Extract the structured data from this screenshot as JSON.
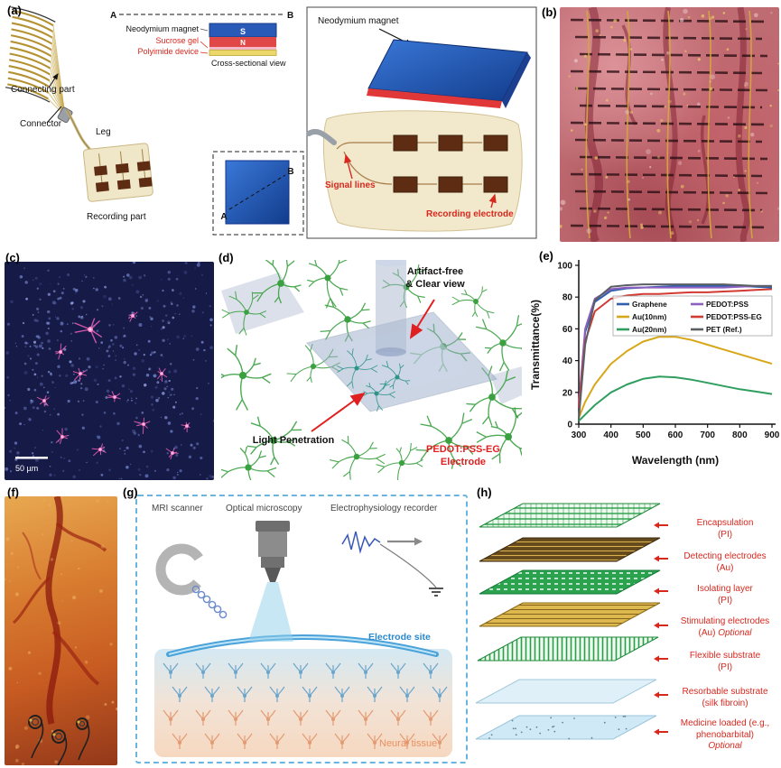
{
  "panel_a": {
    "label": "(a)",
    "inset": {
      "a_marker": "A",
      "b_marker": "B",
      "neodymium_magnet": "Neodymium magnet",
      "sucrose_gel": "Sucrose gel",
      "polyimide_device": "Polyimide device",
      "cross_sectional_view": "Cross-sectional view",
      "s_pole": "S",
      "n_pole": "N"
    },
    "left": {
      "connecting_part": "Connecting part",
      "connector": "Connector",
      "leg": "Leg",
      "recording_part": "Recording part",
      "a_marker": "A",
      "b_marker": "B"
    },
    "right": {
      "neodymium_magnet": "Neodymium magnet",
      "signal_lines": "Signal lines",
      "recording_electrode": "Recording electrode"
    }
  },
  "panel_b": {
    "label": "(b)"
  },
  "panel_c": {
    "label": "(c)",
    "scale_bar": "50 µm"
  },
  "panel_d": {
    "label": "(d)",
    "artifact_line1": "Artifact-free",
    "artifact_line2": "& Clear view",
    "light_penetration": "Light Penetration",
    "electrode_line1": "PEDOT:PSS-EG",
    "electrode_line2": "Electrode"
  },
  "panel_e": {
    "label": "(e)",
    "chart_data": {
      "type": "line",
      "xlabel": "Wavelength (nm)",
      "ylabel": "Transmittance(%)",
      "xlim": [
        300,
        900
      ],
      "ylim": [
        0,
        100
      ],
      "xticks": [
        300,
        400,
        500,
        600,
        700,
        800,
        900
      ],
      "yticks": [
        0,
        20,
        40,
        60,
        80,
        100
      ],
      "grid": false,
      "legend_position": "upper right inside",
      "x": [
        300,
        320,
        350,
        400,
        450,
        500,
        550,
        600,
        650,
        700,
        750,
        800,
        850,
        900
      ],
      "series": [
        {
          "name": "Graphene",
          "color": "#2f5fae",
          "values": [
            10,
            58,
            77,
            84,
            85.5,
            86,
            86.5,
            87,
            87,
            87,
            87,
            87,
            86.5,
            86
          ]
        },
        {
          "name": "Au(10nm)",
          "color": "#d8a718",
          "values": [
            4,
            14,
            25,
            38,
            46,
            52,
            55,
            55,
            53,
            50,
            47,
            44,
            41,
            38
          ]
        },
        {
          "name": "Au(20nm)",
          "color": "#2f9e5f",
          "values": [
            2,
            6,
            12,
            20,
            25,
            28.5,
            30,
            29.5,
            28,
            26,
            24,
            22,
            20.5,
            19
          ]
        },
        {
          "name": "PEDOT:PSS",
          "color": "#8f5fc0",
          "values": [
            12,
            60,
            79,
            85,
            86,
            86,
            86,
            86,
            86,
            86,
            86,
            86.5,
            87,
            87
          ]
        },
        {
          "name": "PEDOT:PSS-EG",
          "color": "#d23a32",
          "values": [
            10,
            52,
            71,
            79,
            81,
            82,
            82,
            82.5,
            83,
            83,
            83.5,
            84,
            84.5,
            85
          ]
        },
        {
          "name": "PET (Ref.)",
          "color": "#5a5f63",
          "values": [
            3,
            50,
            78,
            86.5,
            87.5,
            88,
            88,
            88,
            88,
            88,
            88,
            87.5,
            87,
            87
          ]
        }
      ],
      "legend_col1": [
        "Graphene",
        "Au(10nm)",
        "Au(20nm)"
      ],
      "legend_col2": [
        "PEDOT:PSS",
        "PEDOT:PSS-EG",
        "PET (Ref.)"
      ]
    }
  },
  "panel_f": {
    "label": "(f)"
  },
  "panel_g": {
    "label": "(g)",
    "mri_scanner": "MRI scanner",
    "optical_microscopy": "Optical microscopy",
    "ephys_recorder": "Electrophysiology recorder",
    "electrode_site": "Electrode site",
    "neural_tissue": "Neural tissue"
  },
  "panel_h": {
    "label": "(h)",
    "label_color": "#d8281e",
    "layers": [
      {
        "name": "Encapsulation",
        "detail": "(PI)",
        "optional": ""
      },
      {
        "name": "Detecting electrodes",
        "detail": "(Au)",
        "optional": ""
      },
      {
        "name": "Isolating layer",
        "detail": "(PI)",
        "optional": ""
      },
      {
        "name": "Stimulating electrodes",
        "detail": "(Au)",
        "optional": "Optional"
      },
      {
        "name": "Flexible substrate",
        "detail": "(PI)",
        "optional": ""
      },
      {
        "name": "Resorbable substrate",
        "detail": "(silk fibroin)",
        "optional": ""
      },
      {
        "name": "Medicine loaded (e.g., phenobarbital)",
        "detail": "",
        "optional": "Optional"
      }
    ]
  }
}
